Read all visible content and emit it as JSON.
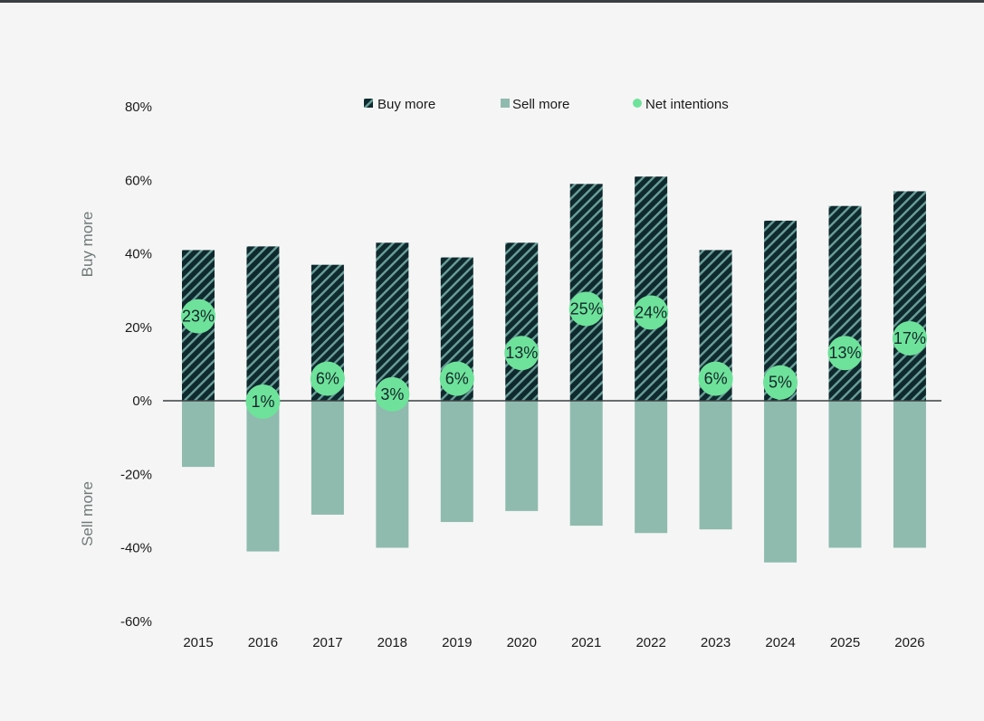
{
  "chart_data": {
    "type": "bar",
    "categories": [
      "2015",
      "2016",
      "2017",
      "2018",
      "2019",
      "2020",
      "2021",
      "2022",
      "2023",
      "2024",
      "2025",
      "2026"
    ],
    "series": [
      {
        "name": "Buy more",
        "values": [
          41,
          42,
          37,
          43,
          39,
          43,
          59,
          61,
          41,
          49,
          53,
          57
        ],
        "color": "#0f2a2e",
        "pattern": "diagonal-stripes"
      },
      {
        "name": "Sell more",
        "values": [
          -18,
          -41,
          -31,
          -40,
          -33,
          -30,
          -34,
          -36,
          -35,
          -44,
          -40,
          -40
        ],
        "color": "#8fbbae"
      },
      {
        "name": "Net intentions",
        "values": [
          23,
          1,
          6,
          3,
          6,
          13,
          25,
          24,
          6,
          5,
          13,
          17
        ],
        "color": "#6ee29a",
        "labels": [
          "23%",
          "1%",
          "6%",
          "3%",
          "6%",
          "13%",
          "25%",
          "24%",
          "6%",
          "5%",
          "13%",
          "17%"
        ]
      }
    ],
    "yticks": [
      "80%",
      "60%",
      "40%",
      "20%",
      "0%",
      "-20%",
      "-40%",
      "-60%"
    ],
    "ytick_values": [
      80,
      60,
      40,
      20,
      0,
      -20,
      -40,
      -60
    ],
    "ylim": [
      -60,
      80
    ],
    "ylabel_top": "Buy more",
    "ylabel_bottom": "Sell more",
    "legend_position": "top-center",
    "grid": false
  }
}
